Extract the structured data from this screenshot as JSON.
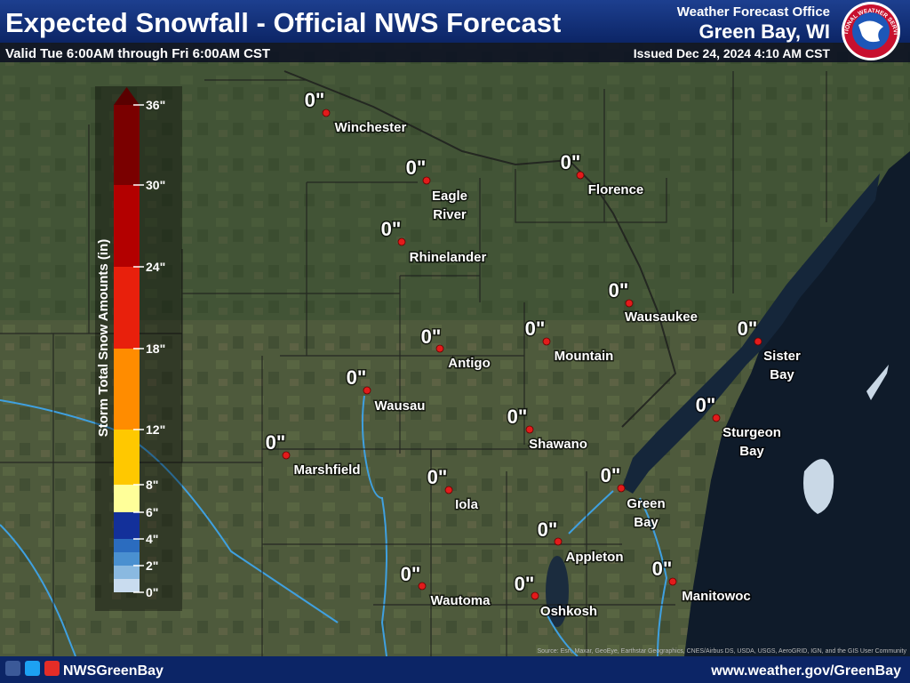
{
  "header": {
    "title": "Expected Snowfall - Official NWS Forecast",
    "subtitle": "Valid Tue 6:00AM through Fri 6:00AM CST",
    "office_line1": "Weather Forecast Office",
    "office_line2": "Green Bay, WI",
    "issued": "Issued Dec 24, 2024 4:10 AM CST",
    "logo_text": "NATIONAL WEATHER SERVICE"
  },
  "legend": {
    "title": "Storm Total Snow Amounts (in)",
    "labels": [
      "0\"",
      "2\"",
      "4\"",
      "6\"",
      "8\"",
      "12\"",
      "18\"",
      "24\"",
      "30\"",
      "36\""
    ],
    "colors": [
      "#c9dcef",
      "#8ab9e0",
      "#4a90d0",
      "#2b6cbf",
      "#13309a",
      "#ffff99",
      "#ffc800",
      "#ff8c00",
      "#e8200c",
      "#b30000",
      "#7a0000",
      "#5a0000"
    ]
  },
  "cities": [
    {
      "name": [
        "Winchester"
      ],
      "amount": "0\""
    },
    {
      "name": [
        "Eagle",
        "River"
      ],
      "amount": "0\""
    },
    {
      "name": [
        "Florence"
      ],
      "amount": "0\""
    },
    {
      "name": [
        "Rhinelander"
      ],
      "amount": "0\""
    },
    {
      "name": [
        "Wausaukee"
      ],
      "amount": "0\""
    },
    {
      "name": [
        "Sister",
        "Bay"
      ],
      "amount": "0\""
    },
    {
      "name": [
        "Antigo"
      ],
      "amount": "0\""
    },
    {
      "name": [
        "Mountain"
      ],
      "amount": "0\""
    },
    {
      "name": [
        "Wausau"
      ],
      "amount": "0\""
    },
    {
      "name": [
        "Sturgeon",
        "Bay"
      ],
      "amount": "0\""
    },
    {
      "name": [
        "Shawano"
      ],
      "amount": "0\""
    },
    {
      "name": [
        "Marshfield"
      ],
      "amount": "0\""
    },
    {
      "name": [
        "Green",
        "Bay"
      ],
      "amount": "0\""
    },
    {
      "name": [
        "Iola"
      ],
      "amount": "0\""
    },
    {
      "name": [
        "Appleton"
      ],
      "amount": "0\""
    },
    {
      "name": [
        "Manitowoc"
      ],
      "amount": "0\""
    },
    {
      "name": [
        "Wautoma"
      ],
      "amount": "0\""
    },
    {
      "name": [
        "Oshkosh"
      ],
      "amount": "0\""
    }
  ],
  "footer": {
    "social": "NWSGreenBay",
    "website": "www.weather.gov/GreenBay",
    "source": "Source: Esri, Maxar, GeoEye, Earthstar Geographics, CNES/Airbus DS, USDA, USGS, AeroGRID, IGN, and the GIS User Community"
  }
}
